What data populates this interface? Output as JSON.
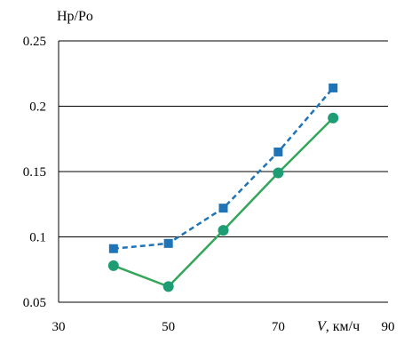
{
  "chart_data": {
    "type": "line",
    "ylabel": "Hp/Po",
    "xlabel_var": "V",
    "xlabel_unit": ", км/ч",
    "xlim": [
      30,
      90
    ],
    "ylim": [
      0.05,
      0.25
    ],
    "x_ticks": [
      "30",
      "50",
      "70",
      "90"
    ],
    "y_ticks": [
      "0.25",
      "0.2",
      "0.15",
      "0.1",
      "0.05"
    ],
    "grid": "horizontal",
    "series": [
      {
        "marker": "square",
        "line_style": "dashed",
        "color": "#1f73b7",
        "x": [
          40,
          50,
          60,
          70,
          80
        ],
        "y": [
          0.091,
          0.095,
          0.122,
          0.165,
          0.214
        ]
      },
      {
        "marker": "circle",
        "line_style": "solid",
        "color": "#1e9c73",
        "line_color": "#33a65a",
        "x": [
          40,
          50,
          60,
          70,
          80
        ],
        "y": [
          0.078,
          0.062,
          0.105,
          0.149,
          0.191
        ]
      }
    ]
  }
}
